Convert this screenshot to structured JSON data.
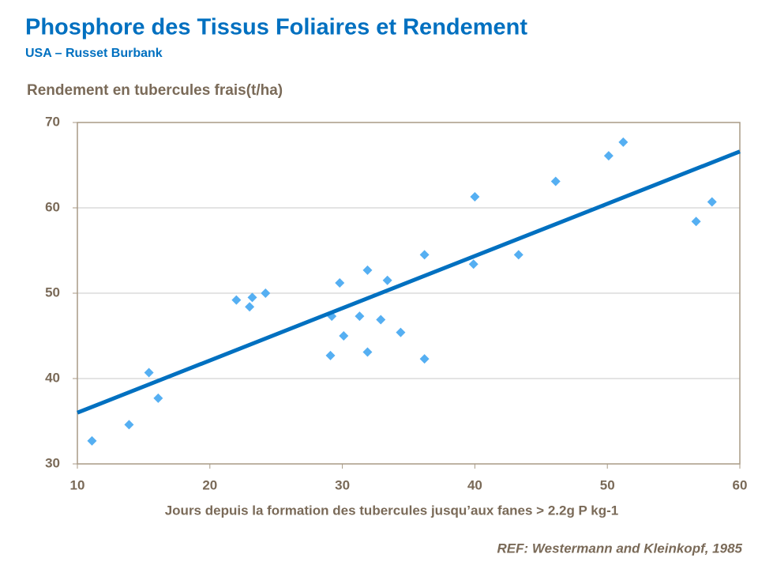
{
  "chart_data": {
    "type": "scatter",
    "title": "Phosphore des Tissus Foliaires et Rendement",
    "subtitle": "USA – Russet Burbank",
    "y_label": "Rendement en tubercules frais(t/ha)",
    "x_label": "Jours depuis la formation des tubercules jusqu’aux fanes > 2.2g P kg-1",
    "source": "REF: Westermann and Kleinkopf, 1985",
    "series": [
      {
        "color": "#55aff2",
        "x": [
          11.1,
          13.9,
          15.4,
          16.1,
          22.0,
          23.0,
          23.2,
          24.2,
          29.1,
          29.2,
          29.8,
          30.1,
          31.3,
          31.9,
          31.9,
          32.9,
          33.4,
          34.4,
          36.2,
          36.2,
          39.9,
          40.0,
          43.3,
          46.1,
          50.1,
          51.2,
          56.7,
          57.9
        ],
        "values": [
          32.7,
          34.6,
          40.7,
          37.7,
          49.2,
          48.4,
          49.5,
          50.0,
          42.7,
          47.3,
          51.2,
          45.0,
          47.3,
          52.7,
          43.1,
          46.9,
          51.5,
          45.4,
          54.5,
          42.3,
          53.4,
          61.3,
          54.5,
          63.1,
          66.1,
          67.7,
          58.4,
          60.7
        ]
      }
    ],
    "trendline": {
      "color": "#0070c0",
      "x": [
        10,
        60
      ],
      "y": [
        36.0,
        66.6
      ]
    },
    "xlim": [
      10,
      60
    ],
    "xticks": [
      10,
      20,
      30,
      40,
      50,
      60
    ],
    "ylim": [
      30,
      70
    ],
    "yticks": [
      30,
      40,
      50,
      60,
      70
    ],
    "grid": true
  }
}
